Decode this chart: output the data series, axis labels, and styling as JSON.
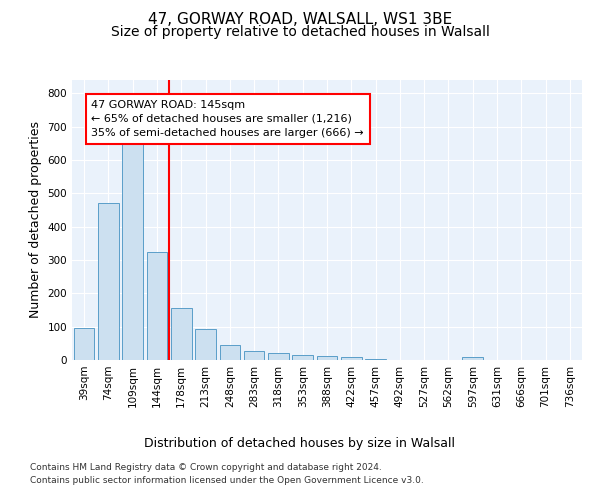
{
  "title_line1": "47, GORWAY ROAD, WALSALL, WS1 3BE",
  "title_line2": "Size of property relative to detached houses in Walsall",
  "xlabel": "Distribution of detached houses by size in Walsall",
  "ylabel": "Number of detached properties",
  "categories": [
    "39sqm",
    "74sqm",
    "109sqm",
    "144sqm",
    "178sqm",
    "213sqm",
    "248sqm",
    "283sqm",
    "318sqm",
    "353sqm",
    "388sqm",
    "422sqm",
    "457sqm",
    "492sqm",
    "527sqm",
    "562sqm",
    "597sqm",
    "631sqm",
    "666sqm",
    "701sqm",
    "736sqm"
  ],
  "values": [
    95,
    470,
    648,
    323,
    157,
    92,
    45,
    27,
    20,
    15,
    12,
    8,
    3,
    0,
    0,
    0,
    8,
    0,
    0,
    0,
    0
  ],
  "bar_color": "#cce0f0",
  "bar_edge_color": "#5a9ec9",
  "vline_index": 3,
  "annotation_text": "47 GORWAY ROAD: 145sqm\n← 65% of detached houses are smaller (1,216)\n35% of semi-detached houses are larger (666) →",
  "annotation_box_color": "white",
  "annotation_box_edge_color": "red",
  "vline_color": "red",
  "ylim": [
    0,
    840
  ],
  "yticks": [
    0,
    100,
    200,
    300,
    400,
    500,
    600,
    700,
    800
  ],
  "background_color": "#eaf2fb",
  "footnote_line1": "Contains HM Land Registry data © Crown copyright and database right 2024.",
  "footnote_line2": "Contains public sector information licensed under the Open Government Licence v3.0.",
  "title_fontsize": 11,
  "subtitle_fontsize": 10,
  "axis_label_fontsize": 9,
  "tick_fontsize": 7.5,
  "annotation_fontsize": 8
}
